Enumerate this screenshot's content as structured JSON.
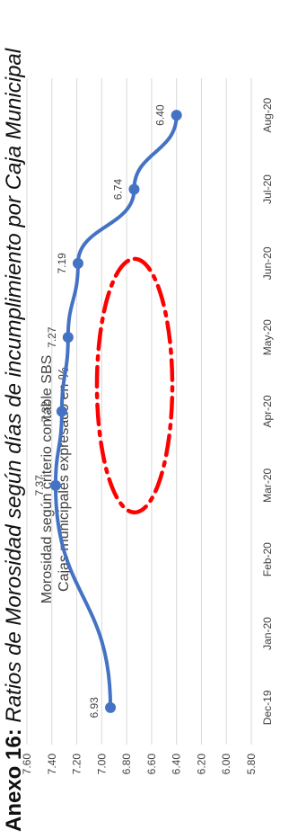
{
  "page": {
    "title_bold": "Anexo 16:",
    "title_rest": " Ratios de Morosidad según días de incumplimiento por Caja Municipal"
  },
  "colors": {
    "line": "#4472C4",
    "ellipse": "#FF0000",
    "grid": "#D9D9D9",
    "text": "#404040"
  },
  "chart_data": {
    "type": "line",
    "title": "Morosidad según criterio contable SBS",
    "subtitle": "Cajas municipales expresado en %",
    "categories": [
      "Dec-19",
      "Jan-20",
      "Feb-20",
      "Mar-20",
      "Apr-20",
      "May-20",
      "Jun-20",
      "Jul-20",
      "Aug-20"
    ],
    "series": [
      {
        "values": [
          6.93,
          null,
          null,
          7.37,
          7.32,
          7.27,
          7.19,
          6.74,
          6.4
        ],
        "labels": [
          "6.93",
          null,
          null,
          "7.37",
          "7.32",
          "7.27",
          "7.19",
          "6.74",
          "6.40"
        ]
      }
    ],
    "ylim": [
      5.8,
      7.6
    ],
    "yticks": [
      "7.60",
      "7.40",
      "7.20",
      "7.00",
      "6.80",
      "6.60",
      "6.40",
      "6.20",
      "6.00",
      "5.80"
    ],
    "grid": true,
    "annotation": "red dash-dot ellipse highlighting Mar-20 to Jun-20"
  }
}
